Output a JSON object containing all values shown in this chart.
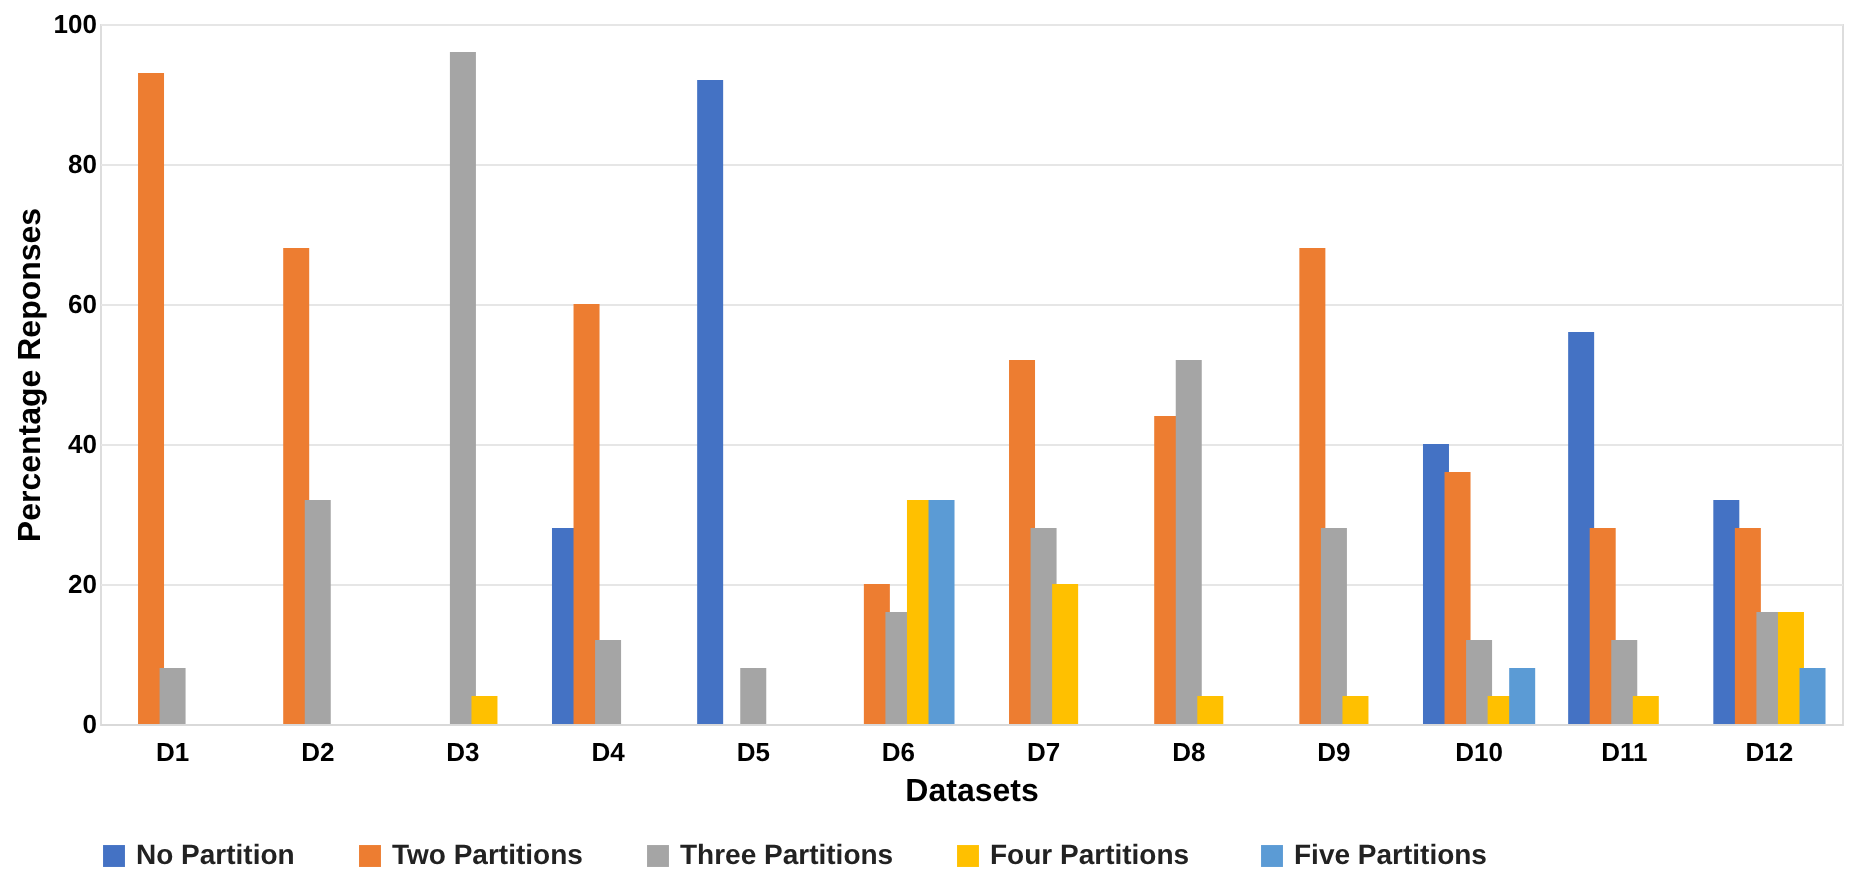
{
  "chart_data": {
    "type": "bar",
    "xlabel": "Datasets",
    "ylabel": "Percentage Reponses",
    "categories": [
      "D1",
      "D2",
      "D3",
      "D4",
      "D5",
      "D6",
      "D7",
      "D8",
      "D9",
      "D10",
      "D11",
      "D12"
    ],
    "series": [
      {
        "name": "No Partition",
        "color": "#4472c4",
        "values": [
          null,
          null,
          null,
          28,
          92,
          null,
          null,
          null,
          null,
          40,
          56,
          32
        ]
      },
      {
        "name": "Two Partitions",
        "color": "#ed7d31",
        "values": [
          93,
          68,
          null,
          60,
          null,
          20,
          52,
          44,
          68,
          36,
          28,
          28
        ]
      },
      {
        "name": "Three Partitions",
        "color": "#a5a5a5",
        "values": [
          8,
          32,
          96,
          12,
          8,
          16,
          28,
          52,
          28,
          12,
          12,
          16
        ]
      },
      {
        "name": "Four  Partitions",
        "color": "#ffc000",
        "values": [
          null,
          null,
          4,
          null,
          null,
          32,
          20,
          4,
          4,
          4,
          4,
          16
        ]
      },
      {
        "name": "Five  Partitions",
        "color": "#5b9bd5",
        "values": [
          null,
          null,
          null,
          null,
          null,
          32,
          null,
          null,
          null,
          8,
          null,
          8
        ]
      }
    ],
    "ylim": [
      0,
      100
    ],
    "yticks": [
      0,
      20,
      40,
      60,
      80,
      100
    ],
    "grid": "y",
    "legend": "bottom"
  }
}
